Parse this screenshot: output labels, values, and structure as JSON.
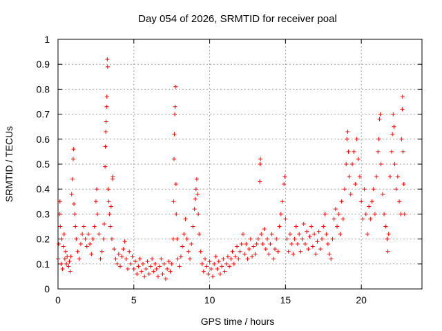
{
  "chart_data": {
    "type": "scatter",
    "title": "Day 054 of 2026, SRMTID for receiver poal",
    "xlabel": "GPS time / hours",
    "ylabel": "SRMTID / TECUs",
    "xlim": [
      0,
      24
    ],
    "ylim": [
      0,
      1
    ],
    "xticks": [
      0,
      5,
      10,
      15,
      20
    ],
    "yticks": [
      0,
      0.1,
      0.2,
      0.3,
      0.4,
      0.5,
      0.6,
      0.7,
      0.8,
      0.9,
      1
    ],
    "grid": true,
    "marker": "plus",
    "color": "#ff0000",
    "series": [
      {
        "name": "SRMTID",
        "points": [
          [
            0.0,
            0.12
          ],
          [
            0.05,
            0.18
          ],
          [
            0.1,
            0.3
          ],
          [
            0.12,
            0.35
          ],
          [
            0.15,
            0.25
          ],
          [
            0.2,
            0.1
          ],
          [
            0.25,
            0.2
          ],
          [
            0.3,
            0.08
          ],
          [
            0.35,
            0.17
          ],
          [
            0.4,
            0.22
          ],
          [
            0.45,
            0.12
          ],
          [
            0.5,
            0.15
          ],
          [
            0.55,
            0.1
          ],
          [
            0.6,
            0.13
          ],
          [
            0.7,
            0.09
          ],
          [
            0.75,
            0.11
          ],
          [
            0.8,
            0.07
          ],
          [
            0.85,
            0.13
          ],
          [
            0.9,
            0.38
          ],
          [
            0.95,
            0.44
          ],
          [
            1.0,
            0.52
          ],
          [
            1.02,
            0.56
          ],
          [
            1.05,
            0.34
          ],
          [
            1.1,
            0.3
          ],
          [
            1.15,
            0.25
          ],
          [
            1.2,
            0.2
          ],
          [
            1.3,
            0.15
          ],
          [
            1.4,
            0.12
          ],
          [
            1.5,
            0.18
          ],
          [
            1.6,
            0.22
          ],
          [
            1.7,
            0.25
          ],
          [
            1.8,
            0.2
          ],
          [
            1.9,
            0.17
          ],
          [
            2.0,
            0.22
          ],
          [
            2.1,
            0.18
          ],
          [
            2.2,
            0.14
          ],
          [
            2.3,
            0.2
          ],
          [
            2.4,
            0.25
          ],
          [
            2.5,
            0.35
          ],
          [
            2.55,
            0.4
          ],
          [
            2.6,
            0.3
          ],
          [
            2.7,
            0.22
          ],
          [
            2.8,
            0.12
          ],
          [
            2.9,
            0.15
          ],
          [
            3.0,
            0.2
          ],
          [
            3.05,
            0.26
          ],
          [
            3.1,
            0.49
          ],
          [
            3.12,
            0.57
          ],
          [
            3.15,
            0.63
          ],
          [
            3.17,
            0.67
          ],
          [
            3.2,
            0.73
          ],
          [
            3.22,
            0.77
          ],
          [
            3.25,
            0.92
          ],
          [
            3.27,
            0.89
          ],
          [
            3.3,
            0.4
          ],
          [
            3.35,
            0.35
          ],
          [
            3.4,
            0.3
          ],
          [
            3.45,
            0.25
          ],
          [
            3.5,
            0.33
          ],
          [
            3.55,
            0.2
          ],
          [
            3.6,
            0.44
          ],
          [
            3.62,
            0.45
          ],
          [
            3.7,
            0.16
          ],
          [
            3.8,
            0.12
          ],
          [
            3.9,
            0.1
          ],
          [
            4.0,
            0.14
          ],
          [
            4.1,
            0.09
          ],
          [
            4.2,
            0.13
          ],
          [
            4.3,
            0.16
          ],
          [
            4.4,
            0.19
          ],
          [
            4.5,
            0.12
          ],
          [
            4.6,
            0.08
          ],
          [
            4.7,
            0.15
          ],
          [
            4.8,
            0.1
          ],
          [
            4.9,
            0.13
          ],
          [
            5.0,
            0.08
          ],
          [
            5.1,
            0.11
          ],
          [
            5.2,
            0.06
          ],
          [
            5.3,
            0.09
          ],
          [
            5.4,
            0.12
          ],
          [
            5.5,
            0.07
          ],
          [
            5.6,
            0.1
          ],
          [
            5.7,
            0.05
          ],
          [
            5.8,
            0.08
          ],
          [
            5.9,
            0.11
          ],
          [
            6.0,
            0.06
          ],
          [
            6.1,
            0.09
          ],
          [
            6.2,
            0.12
          ],
          [
            6.3,
            0.07
          ],
          [
            6.4,
            0.1
          ],
          [
            6.5,
            0.08
          ],
          [
            6.6,
            0.05
          ],
          [
            6.7,
            0.09
          ],
          [
            6.8,
            0.12
          ],
          [
            6.9,
            0.06
          ],
          [
            7.0,
            0.1
          ],
          [
            7.1,
            0.04
          ],
          [
            7.2,
            0.08
          ],
          [
            7.3,
            0.11
          ],
          [
            7.4,
            0.07
          ],
          [
            7.5,
            0.1
          ],
          [
            7.6,
            0.2
          ],
          [
            7.62,
            0.35
          ],
          [
            7.65,
            0.52
          ],
          [
            7.67,
            0.62
          ],
          [
            7.7,
            0.7
          ],
          [
            7.72,
            0.73
          ],
          [
            7.75,
            0.81
          ],
          [
            7.78,
            0.42
          ],
          [
            7.8,
            0.3
          ],
          [
            7.85,
            0.2
          ],
          [
            7.9,
            0.12
          ],
          [
            8.0,
            0.09
          ],
          [
            8.1,
            0.13
          ],
          [
            8.2,
            0.17
          ],
          [
            8.3,
            0.22
          ],
          [
            8.4,
            0.28
          ],
          [
            8.5,
            0.2
          ],
          [
            8.6,
            0.15
          ],
          [
            8.7,
            0.12
          ],
          [
            8.8,
            0.18
          ],
          [
            8.9,
            0.25
          ],
          [
            9.0,
            0.32
          ],
          [
            9.05,
            0.36
          ],
          [
            9.1,
            0.4
          ],
          [
            9.15,
            0.44
          ],
          [
            9.2,
            0.38
          ],
          [
            9.25,
            0.3
          ],
          [
            9.3,
            0.22
          ],
          [
            9.4,
            0.15
          ],
          [
            9.5,
            0.1
          ],
          [
            9.6,
            0.07
          ],
          [
            9.7,
            0.12
          ],
          [
            9.8,
            0.09
          ],
          [
            9.9,
            0.06
          ],
          [
            10.0,
            0.11
          ],
          [
            10.1,
            0.08
          ],
          [
            10.2,
            0.05
          ],
          [
            10.3,
            0.1
          ],
          [
            10.4,
            0.13
          ],
          [
            10.5,
            0.08
          ],
          [
            10.6,
            0.11
          ],
          [
            10.7,
            0.06
          ],
          [
            10.8,
            0.09
          ],
          [
            10.9,
            0.12
          ],
          [
            11.0,
            0.07
          ],
          [
            11.1,
            0.1
          ],
          [
            11.2,
            0.13
          ],
          [
            11.3,
            0.09
          ],
          [
            11.4,
            0.12
          ],
          [
            11.5,
            0.15
          ],
          [
            11.6,
            0.1
          ],
          [
            11.7,
            0.13
          ],
          [
            11.8,
            0.17
          ],
          [
            11.9,
            0.12
          ],
          [
            12.0,
            0.15
          ],
          [
            12.1,
            0.18
          ],
          [
            12.2,
            0.22
          ],
          [
            12.3,
            0.14
          ],
          [
            12.4,
            0.18
          ],
          [
            12.5,
            0.12
          ],
          [
            12.6,
            0.16
          ],
          [
            12.7,
            0.2
          ],
          [
            12.8,
            0.13
          ],
          [
            12.9,
            0.17
          ],
          [
            13.0,
            0.14
          ],
          [
            13.1,
            0.18
          ],
          [
            13.2,
            0.2
          ],
          [
            13.3,
            0.43
          ],
          [
            13.32,
            0.5
          ],
          [
            13.35,
            0.52
          ],
          [
            13.4,
            0.22
          ],
          [
            13.5,
            0.18
          ],
          [
            13.6,
            0.24
          ],
          [
            13.7,
            0.16
          ],
          [
            13.8,
            0.2
          ],
          [
            13.9,
            0.14
          ],
          [
            14.0,
            0.18
          ],
          [
            14.1,
            0.22
          ],
          [
            14.2,
            0.12
          ],
          [
            14.3,
            0.16
          ],
          [
            14.4,
            0.2
          ],
          [
            14.5,
            0.15
          ],
          [
            14.6,
            0.25
          ],
          [
            14.7,
            0.3
          ],
          [
            14.8,
            0.35
          ],
          [
            14.9,
            0.42
          ],
          [
            14.95,
            0.45
          ],
          [
            15.0,
            0.28
          ],
          [
            15.1,
            0.2
          ],
          [
            15.2,
            0.15
          ],
          [
            15.3,
            0.22
          ],
          [
            15.4,
            0.18
          ],
          [
            15.5,
            0.14
          ],
          [
            15.6,
            0.2
          ],
          [
            15.7,
            0.25
          ],
          [
            15.8,
            0.18
          ],
          [
            15.9,
            0.22
          ],
          [
            16.0,
            0.15
          ],
          [
            16.1,
            0.2
          ],
          [
            16.2,
            0.26
          ],
          [
            16.3,
            0.18
          ],
          [
            16.4,
            0.23
          ],
          [
            16.5,
            0.16
          ],
          [
            16.6,
            0.21
          ],
          [
            16.7,
            0.25
          ],
          [
            16.8,
            0.17
          ],
          [
            16.9,
            0.22
          ],
          [
            17.0,
            0.14
          ],
          [
            17.1,
            0.19
          ],
          [
            17.2,
            0.23
          ],
          [
            17.3,
            0.16
          ],
          [
            17.4,
            0.2
          ],
          [
            17.5,
            0.25
          ],
          [
            17.6,
            0.3
          ],
          [
            17.7,
            0.22
          ],
          [
            17.8,
            0.18
          ],
          [
            17.9,
            0.14
          ],
          [
            18.0,
            0.12
          ],
          [
            18.1,
            0.2
          ],
          [
            18.2,
            0.28
          ],
          [
            18.3,
            0.32
          ],
          [
            18.4,
            0.25
          ],
          [
            18.5,
            0.3
          ],
          [
            18.6,
            0.22
          ],
          [
            18.7,
            0.35
          ],
          [
            18.8,
            0.28
          ],
          [
            18.9,
            0.4
          ],
          [
            19.0,
            0.5
          ],
          [
            19.05,
            0.6
          ],
          [
            19.1,
            0.63
          ],
          [
            19.15,
            0.55
          ],
          [
            19.2,
            0.45
          ],
          [
            19.3,
            0.38
          ],
          [
            19.4,
            0.5
          ],
          [
            19.5,
            0.55
          ],
          [
            19.6,
            0.42
          ],
          [
            19.7,
            0.6
          ],
          [
            19.8,
            0.52
          ],
          [
            19.9,
            0.45
          ],
          [
            20.0,
            0.35
          ],
          [
            20.1,
            0.28
          ],
          [
            20.2,
            0.4
          ],
          [
            20.3,
            0.3
          ],
          [
            20.4,
            0.22
          ],
          [
            20.5,
            0.33
          ],
          [
            20.6,
            0.28
          ],
          [
            20.7,
            0.35
          ],
          [
            20.8,
            0.4
          ],
          [
            20.9,
            0.3
          ],
          [
            21.0,
            0.45
          ],
          [
            21.1,
            0.55
          ],
          [
            21.15,
            0.6
          ],
          [
            21.2,
            0.68
          ],
          [
            21.25,
            0.7
          ],
          [
            21.3,
            0.5
          ],
          [
            21.4,
            0.38
          ],
          [
            21.5,
            0.3
          ],
          [
            21.6,
            0.25
          ],
          [
            21.7,
            0.2
          ],
          [
            21.75,
            0.15
          ],
          [
            21.8,
            0.22
          ],
          [
            21.9,
            0.45
          ],
          [
            22.0,
            0.55
          ],
          [
            22.05,
            0.62
          ],
          [
            22.1,
            0.7
          ],
          [
            22.15,
            0.65
          ],
          [
            22.2,
            0.5
          ],
          [
            22.3,
            0.4
          ],
          [
            22.4,
            0.45
          ],
          [
            22.5,
            0.35
          ],
          [
            22.6,
            0.3
          ],
          [
            22.65,
            0.6
          ],
          [
            22.7,
            0.72
          ],
          [
            22.72,
            0.77
          ],
          [
            22.75,
            0.55
          ],
          [
            22.8,
            0.42
          ],
          [
            22.85,
            0.3
          ]
        ]
      }
    ]
  }
}
